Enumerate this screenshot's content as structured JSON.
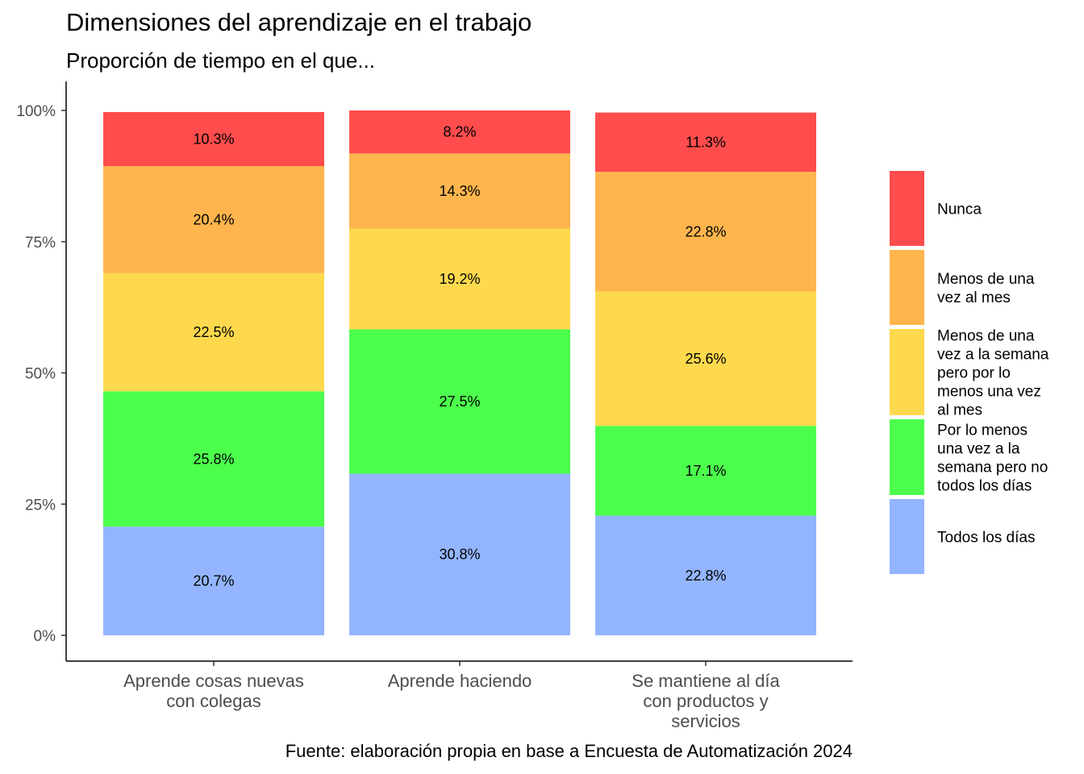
{
  "title": "Dimensiones del aprendizaje en el trabajo",
  "subtitle": "Proporción de tiempo en el que...",
  "caption": "Fuente: elaboración propia en base a Encuesta de Automatización 2024",
  "chart_data": {
    "type": "bar",
    "stacked": true,
    "categories": [
      [
        "Aprende cosas nuevas",
        "con colegas"
      ],
      [
        "Aprende haciendo"
      ],
      [
        "Se mantiene al día",
        "con productos y",
        "servicios"
      ]
    ],
    "y_ticks": [
      "0%",
      "25%",
      "50%",
      "75%",
      "100%"
    ],
    "ylim": [
      0,
      100
    ],
    "grid": false,
    "legend_position": "right",
    "series": [
      {
        "name": "Todos los días",
        "legend_lines": [
          "Todos los días"
        ],
        "color": "#93B5FF",
        "values": [
          20.7,
          30.8,
          22.8
        ],
        "labels": [
          "20.7%",
          "30.8%",
          "22.8%"
        ]
      },
      {
        "name": "Por lo menos una vez a la semana pero no todos los días",
        "legend_lines": [
          "Por lo menos",
          "una vez a la",
          "semana pero no",
          "todos los días"
        ],
        "color": "#4DFF4D",
        "values": [
          25.8,
          27.5,
          17.1
        ],
        "labels": [
          "25.8%",
          "27.5%",
          "17.1%"
        ]
      },
      {
        "name": "Menos de una vez a la semana pero por lo menos una vez al mes",
        "legend_lines": [
          "Menos de una",
          "vez a la semana",
          "pero por lo",
          "menos una vez",
          "al mes"
        ],
        "color": "#FFD94D",
        "values": [
          22.5,
          19.2,
          25.6
        ],
        "labels": [
          "22.5%",
          "19.2%",
          "25.6%"
        ]
      },
      {
        "name": "Menos de una vez al mes",
        "legend_lines": [
          "Menos de una",
          "vez al mes"
        ],
        "color": "#FFB54D",
        "values": [
          20.4,
          14.3,
          22.8
        ],
        "labels": [
          "20.4%",
          "14.3%",
          "22.8%"
        ]
      },
      {
        "name": "Nunca",
        "legend_lines": [
          "Nunca"
        ],
        "color": "#FF4D4D",
        "values": [
          10.3,
          8.2,
          11.3
        ],
        "labels": [
          "10.3%",
          "8.2%",
          "11.3%"
        ]
      }
    ]
  }
}
